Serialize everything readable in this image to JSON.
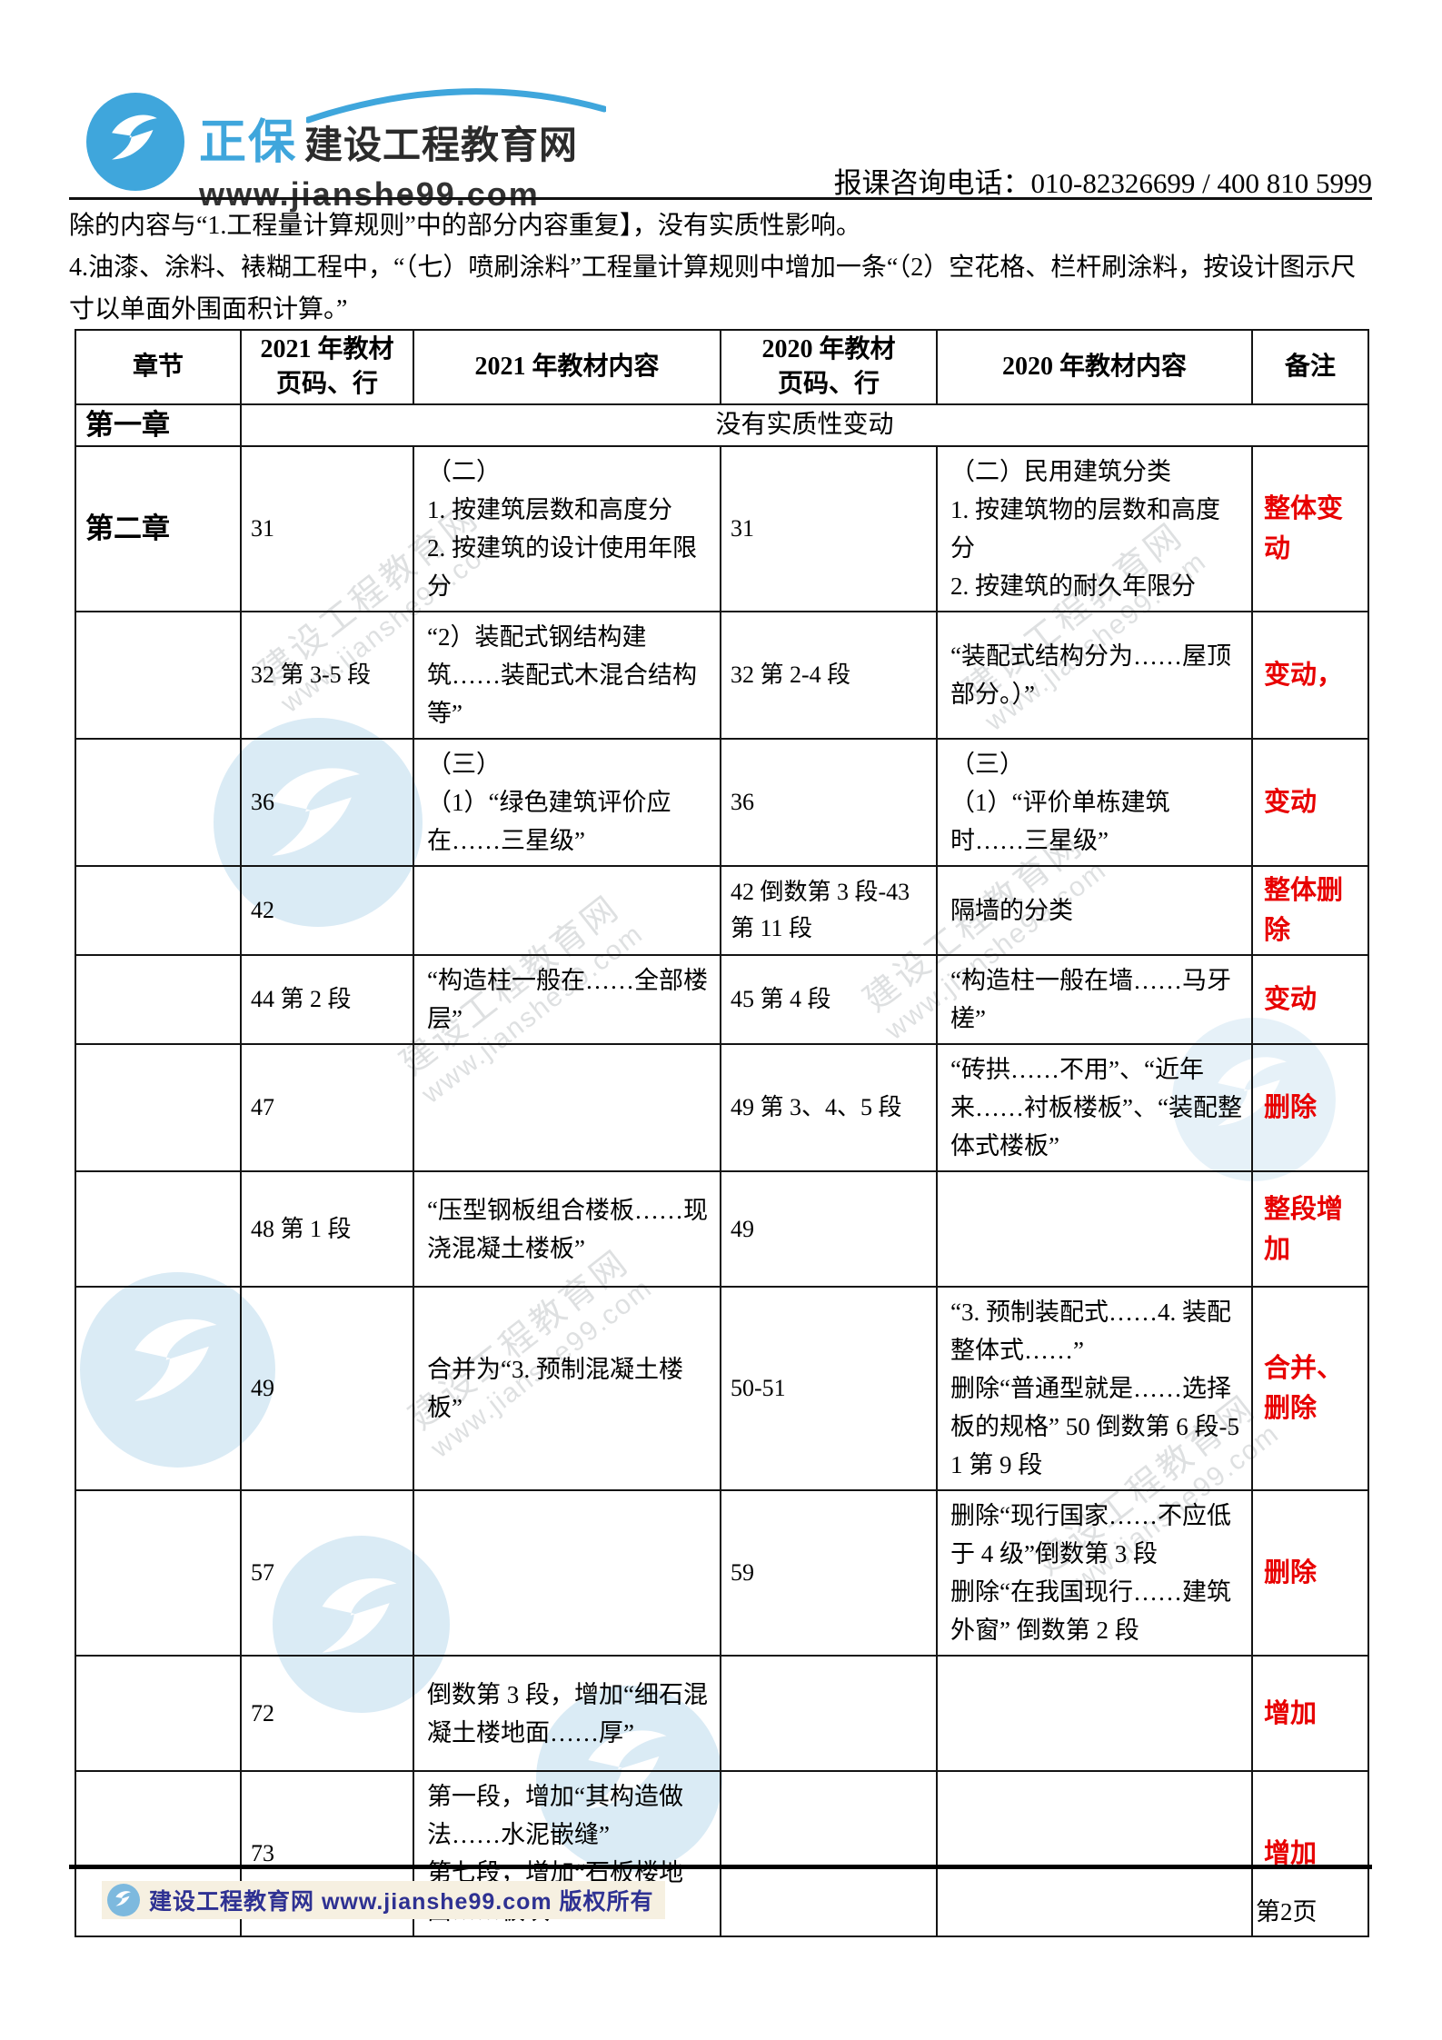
{
  "header": {
    "logo": {
      "brand_cn": "正保",
      "brand_main": "建设工程教育网",
      "url": "www.jianshe99.com"
    },
    "phone_line": "报课咨询电话：010-82326699 / 400 810 5999"
  },
  "intro": {
    "line1": "除的内容与“1.工程量计算规则”中的部分内容重复】，没有实质性影响。",
    "line2": "4.油漆、涂料、裱糊工程中，“（七）喷刷涂料”工程量计算规则中增加一条“（2）空花格、栏杆刷涂料，按设计图示尺寸以单面外围面积计算。”"
  },
  "table": {
    "headers": [
      "章节",
      "2021 年教材\n页码、行",
      "2021 年教材内容",
      "2020 年教材\n页码、行",
      "2020 年教材内容",
      "备注"
    ],
    "merged_row": {
      "chapter": "第一章",
      "note": "没有实质性变动"
    },
    "rows": [
      {
        "chapter": "第二章",
        "p2021": "31",
        "c2021": "（二）\n1. 按建筑层数和高度分\n2. 按建筑的设计使用年限分",
        "p2020": "31",
        "c2020": "（二）民用建筑分类\n1.  按建筑物的层数和高度分\n2.  按建筑的耐久年限分",
        "remark": "整体变动"
      },
      {
        "chapter": "",
        "p2021": "32 第 3-5 段",
        "c2021": "“2）装配式钢结构建筑……装配式木混合结构等”",
        "p2020": "32 第 2-4 段",
        "c2020": "“装配式结构分为……屋顶部分。）”",
        "remark": "变动，"
      },
      {
        "chapter": "",
        "p2021": "36",
        "c2021": "（三）\n（1）“绿色建筑评价应在……三星级”",
        "p2020": "36",
        "c2020": "（三）\n（1）“评价单栋建筑时……三星级”",
        "remark": "变动"
      },
      {
        "chapter": "",
        "p2021": "42",
        "c2021": "",
        "p2020": "42 倒数第 3 段-43 第 11 段",
        "c2020": "隔墙的分类",
        "remark": "整体删除"
      },
      {
        "chapter": "",
        "p2021": "44 第 2 段",
        "c2021": "“构造柱一般在……全部楼层”",
        "p2020": "45 第 4 段",
        "c2020": "“构造柱一般在墙……马牙槎”",
        "remark": "变动"
      },
      {
        "chapter": "",
        "p2021": "47",
        "c2021": "",
        "p2020": "49 第 3、4、5 段",
        "c2020": "“砖拱……不用”、“近年来……衬板楼板”、“装配整体式楼板”",
        "remark": "删除"
      },
      {
        "chapter": "",
        "p2021": "48 第 1 段",
        "c2021": "“压型钢板组合楼板……现浇混凝土楼板”",
        "p2020": "49",
        "c2020": "",
        "remark": "整段增加"
      },
      {
        "chapter": "",
        "p2021": "49",
        "c2021": "合并为“3. 预制混凝土楼板”",
        "p2020": "50-51",
        "c2020": "“3. 预制装配式……4. 装配整体式……”\n删除“普通型就是……选择板的规格”  50 倒数第 6 段-51 第 9 段",
        "remark": "合并、删除"
      },
      {
        "chapter": "",
        "p2021": "57",
        "c2021": "",
        "p2020": "59",
        "c2020": "删除“现行国家……不应低于 4 级”倒数第 3 段\n删除“在我国现行……建筑外窗”  倒数第 2 段",
        "remark": "删除"
      },
      {
        "chapter": "",
        "p2021": "72",
        "c2021": "倒数第 3 段，增加“细石混凝土楼地面……厚”",
        "p2020": "",
        "c2020": "",
        "remark": "增加"
      },
      {
        "chapter": "",
        "p2021": "73",
        "c2021": "第一段，增加“其构造做法……水泥嵌缝”\n第七段，增加“石板楼地面……板块”",
        "p2020": "",
        "c2020": "",
        "remark": "增加"
      }
    ]
  },
  "watermark": {
    "text1": "建设工程教育网",
    "text2": "www.jianshe99.com"
  },
  "footer": {
    "copyright": "建设工程教育网 www.jianshe99.com 版权所有",
    "page_number": "第2页"
  },
  "colors": {
    "brand_blue": "#3fa6dc",
    "remark_red": "#e80000",
    "footer_navy": "#2e3192"
  }
}
